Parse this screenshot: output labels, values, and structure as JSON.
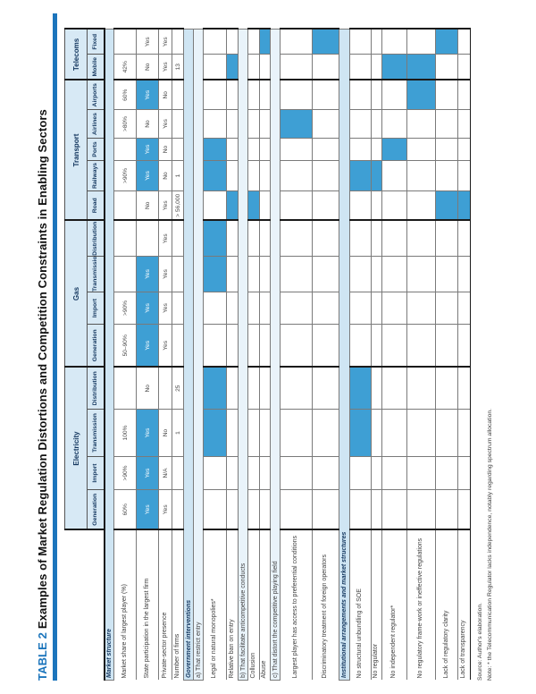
{
  "title": {
    "label": "TABLE 2",
    "text": "Examples of Market Regulation Distortions and Competition Constraints in Enabling Sectors"
  },
  "colors": {
    "accent_blue": "#1C75BC",
    "highlight_cell": "#3E9FD4",
    "section_band": "#CFE5F3",
    "subsection_band": "#E9F3FA",
    "header_band": "#D7E9F5",
    "header_text": "#14375F"
  },
  "columns": {
    "groups": [
      {
        "label": "Electricity",
        "span": 4
      },
      {
        "label": "Gas",
        "span": 4
      },
      {
        "label": "Transport",
        "span": 5
      },
      {
        "label": "Telecoms",
        "span": 2
      }
    ],
    "subheaders": [
      "Generation",
      "Import",
      "Transmission",
      "Distribution",
      "Generation",
      "Import",
      "Transmission",
      "Distribution",
      "Road",
      "Railways",
      "Ports",
      "Airlines",
      "Airports",
      "Mobile",
      "Fixed"
    ]
  },
  "rows": [
    {
      "type": "section",
      "label": "Market structure"
    },
    {
      "type": "data",
      "label": "Market share of largest player (%)",
      "values": [
        "60%",
        ">90%",
        "100%",
        "",
        "50–90%",
        ">90%",
        "",
        "",
        "",
        ">90%",
        "",
        ">80%",
        "60%",
        "42%",
        ""
      ],
      "highlights": []
    },
    {
      "type": "data",
      "label": "State participation in the largest firm",
      "values": [
        "Yes",
        "Yes",
        "Yes",
        "No",
        "Yes",
        "Yes",
        "Yes",
        "",
        "No",
        "Yes",
        "Yes",
        "No",
        "Yes",
        "No",
        "Yes"
      ],
      "highlights": [
        0,
        1,
        2,
        4,
        5,
        6,
        9,
        10,
        12
      ]
    },
    {
      "type": "data",
      "label": "Private-sector presence",
      "values": [
        "Yes",
        "N/A",
        "No",
        "",
        "Yes",
        "Yes",
        "Yes",
        "Yes",
        "Yes",
        "No",
        "No",
        "Yes",
        "No",
        "Yes",
        "Yes"
      ],
      "highlights": []
    },
    {
      "type": "data",
      "label": "Number of firms",
      "values": [
        "",
        "",
        "1",
        "25",
        "",
        "",
        "",
        "",
        "> 56,000",
        "1",
        "",
        "",
        "",
        "13",
        ""
      ],
      "highlights": []
    },
    {
      "type": "section",
      "label": "Government interventions"
    },
    {
      "type": "subsection",
      "label": "a) That restrict entry"
    },
    {
      "type": "data",
      "label": "Legal or natural monopolies*",
      "values": [
        "",
        "",
        "",
        "",
        "",
        "",
        "",
        "",
        "",
        "",
        "",
        "",
        "",
        "",
        ""
      ],
      "highlights": [
        2,
        3,
        6,
        7,
        9,
        10
      ]
    },
    {
      "type": "data",
      "label": "Relative ban on entry",
      "values": [
        "",
        "",
        "",
        "",
        "",
        "",
        "",
        "",
        "",
        "",
        "",
        "",
        "",
        "",
        ""
      ],
      "highlights": [
        8,
        13
      ]
    },
    {
      "type": "subsection",
      "label": "b) That facilitate anticompetitive conducts"
    },
    {
      "type": "data",
      "label": "Collusion",
      "values": [
        "",
        "",
        "",
        "",
        "",
        "",
        "",
        "",
        "",
        "",
        "",
        "",
        "",
        "",
        ""
      ],
      "highlights": [
        8
      ]
    },
    {
      "type": "data",
      "label": "Abuse",
      "values": [
        "",
        "",
        "",
        "",
        "",
        "",
        "",
        "",
        "",
        "",
        "",
        "",
        "",
        "",
        ""
      ],
      "highlights": [
        14
      ]
    },
    {
      "type": "subsection",
      "label": "c) That distort the competitive playing field"
    },
    {
      "type": "data",
      "label": "Largest player has access to preferential conditions",
      "values": [
        "",
        "",
        "",
        "",
        "",
        "",
        "",
        "",
        "",
        "",
        "",
        "",
        "",
        "",
        ""
      ],
      "highlights": [
        11
      ]
    },
    {
      "type": "data",
      "label": "Discriminatory treatment of foreign operators",
      "values": [
        "",
        "",
        "",
        "",
        "",
        "",
        "",
        "",
        "",
        "",
        "",
        "",
        "",
        "",
        ""
      ],
      "highlights": [
        14
      ]
    },
    {
      "type": "section",
      "label": "Institutional arrangements and market structures"
    },
    {
      "type": "data",
      "label": "No structural unbundling of SOE",
      "values": [
        "",
        "",
        "",
        "",
        "",
        "",
        "",
        "",
        "",
        "",
        "",
        "",
        "",
        "",
        ""
      ],
      "highlights": [
        2,
        3,
        9
      ]
    },
    {
      "type": "data",
      "label": "No regulator",
      "values": [
        "",
        "",
        "",
        "",
        "",
        "",
        "",
        "",
        "",
        "",
        "",
        "",
        "",
        "",
        ""
      ],
      "highlights": [
        9
      ]
    },
    {
      "type": "data",
      "label": "No independent regulator*",
      "values": [
        "",
        "",
        "",
        "",
        "",
        "",
        "",
        "",
        "",
        "",
        "",
        "",
        "",
        "",
        ""
      ],
      "highlights": [
        10,
        13
      ]
    },
    {
      "type": "data",
      "label": "No regulatory frame-work or ineffective regulations",
      "values": [
        "",
        "",
        "",
        "",
        "",
        "",
        "",
        "",
        "",
        "",
        "",
        "",
        "",
        "",
        ""
      ],
      "highlights": [
        12,
        13
      ]
    },
    {
      "type": "data",
      "label": "Lack of regulatory clarity",
      "values": [
        "",
        "",
        "",
        "",
        "",
        "",
        "",
        "",
        "",
        "",
        "",
        "",
        "",
        "",
        ""
      ],
      "highlights": [
        8,
        14
      ]
    },
    {
      "type": "data",
      "label": "Lack of transparency",
      "values": [
        "",
        "",
        "",
        "",
        "",
        "",
        "",
        "",
        "",
        "",
        "",
        "",
        "",
        "",
        ""
      ],
      "highlights": [
        8
      ]
    }
  ],
  "footer": {
    "source": "Source: Author's elaboration.",
    "note": "Note: * the Telecommunication Regulator lacks independence, notably regarding spectrum allocation."
  }
}
